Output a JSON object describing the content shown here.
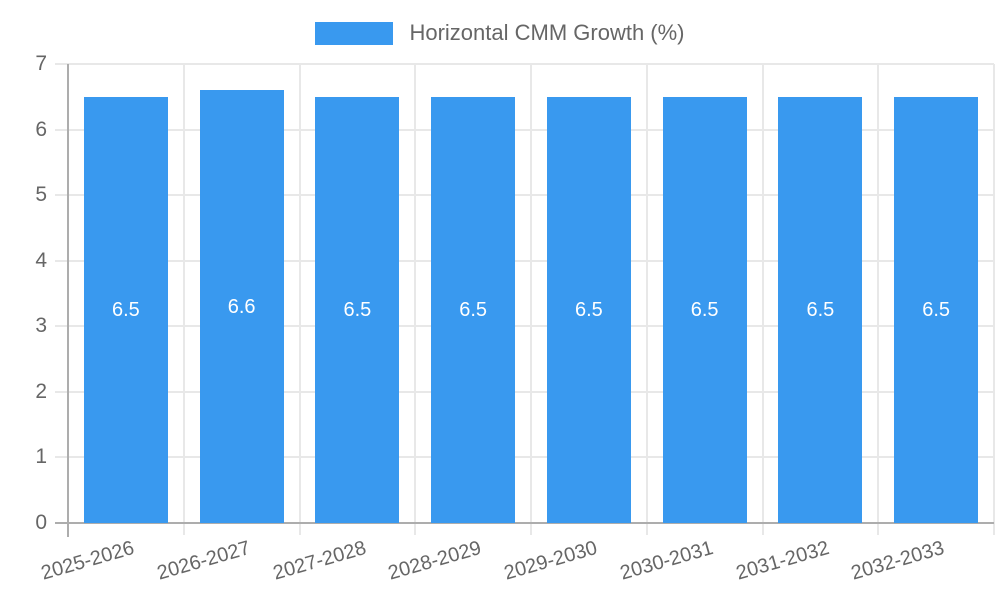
{
  "chart_data": {
    "type": "bar",
    "title": "",
    "xlabel": "",
    "ylabel": "",
    "legend": {
      "label": "Horizontal CMM Growth (%)",
      "position": "top"
    },
    "categories": [
      "2025-2026",
      "2026-2027",
      "2027-2028",
      "2028-2029",
      "2029-2030",
      "2030-2031",
      "2031-2032",
      "2032-2033"
    ],
    "series": [
      {
        "name": "Horizontal CMM Growth (%)",
        "values": [
          6.5,
          6.6,
          6.5,
          6.5,
          6.5,
          6.5,
          6.5,
          6.5
        ],
        "value_labels": [
          "6.5",
          "6.6",
          "6.5",
          "6.5",
          "6.5",
          "6.5",
          "6.5",
          "6.5"
        ]
      }
    ],
    "ylim": [
      0,
      7
    ],
    "yticks": [
      "0",
      "1",
      "2",
      "3",
      "4",
      "5",
      "6",
      "7"
    ],
    "grid": true,
    "legend_position": "top",
    "colors": {
      "bar": "#3999EF",
      "value_label": "#FFFFFF",
      "grid": "#E8E8E8",
      "axis": "#ADADAD",
      "text": "#666666"
    }
  }
}
